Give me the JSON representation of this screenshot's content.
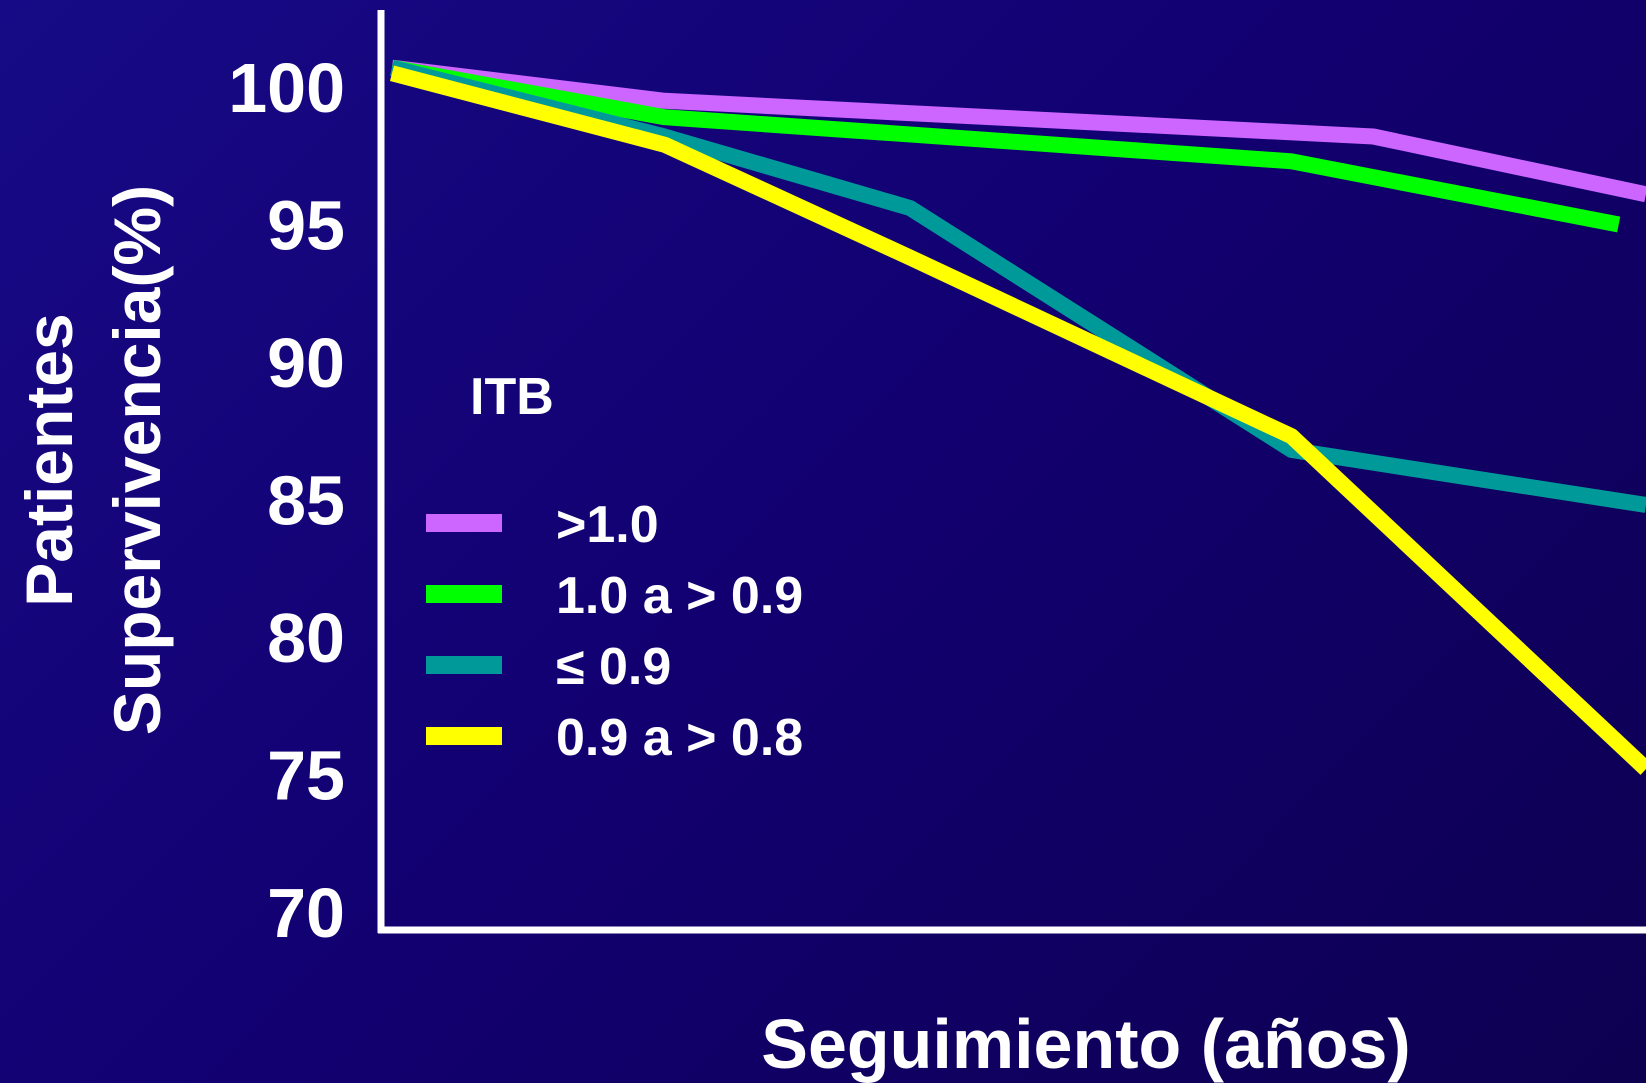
{
  "chart_data": {
    "type": "line",
    "title": "",
    "xlabel": "Seguimiento (años)",
    "ylabel": [
      "Patientes",
      "Supervivencia(%)"
    ],
    "ylim": [
      70,
      100
    ],
    "yticks": [
      "100",
      "95",
      "90",
      "85",
      "80",
      "75",
      "70"
    ],
    "xlim": [
      0,
      4.6
    ],
    "grid": false,
    "legend": {
      "title": "ITB",
      "placement": "center-left"
    },
    "series": [
      {
        "name": ">1.0",
        "color": "#cc66ff",
        "x": [
          0,
          1,
          3.6,
          4.6
        ],
        "y": [
          100.7,
          99.5,
          98.2,
          96.1
        ]
      },
      {
        "name": "1.0 a > 0.9",
        "color": "#00ff00",
        "x": [
          0,
          1,
          3.3,
          4.5
        ],
        "y": [
          100.7,
          98.9,
          97.3,
          95.0
        ]
      },
      {
        "name": "≤ 0.9",
        "color": "#009999",
        "x": [
          0,
          1,
          1.9,
          3.3,
          4.6
        ],
        "y": [
          100.7,
          98.2,
          95.6,
          86.8,
          84.8
        ]
      },
      {
        "name": "0.9 a > 0.8",
        "color": "#ffff00",
        "x": [
          0,
          1,
          1.9,
          3.3,
          4.6
        ],
        "y": [
          100.5,
          97.9,
          93.8,
          87.3,
          75.2
        ]
      }
    ]
  },
  "style": {
    "background": "#120070",
    "axis_color": "#ffffff",
    "text_color": "#ffffff"
  }
}
